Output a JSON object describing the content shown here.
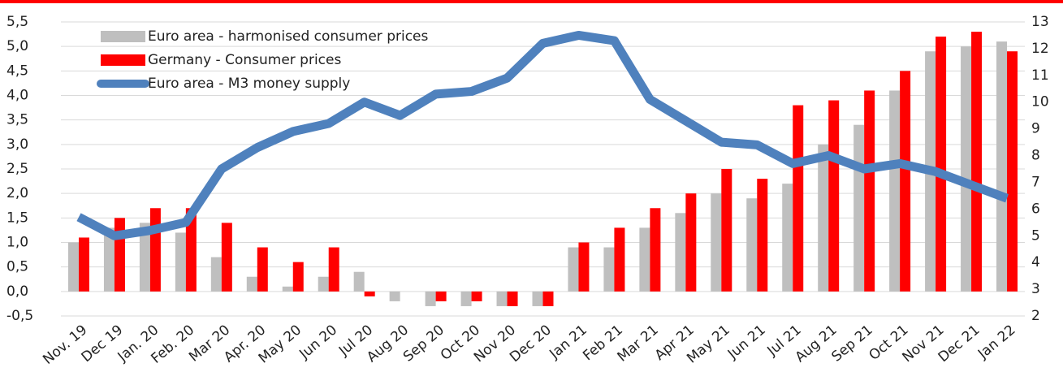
{
  "chart_data": {
    "type": "bar_line",
    "categories": [
      "Nov. 19",
      "Dec 19",
      "Jan. 20",
      "Feb. 20",
      "Mar 20",
      "Apr. 20",
      "May 20",
      "Jun 20",
      "Jul 20",
      "Aug 20",
      "Sep 20",
      "Oct 20",
      "Nov 20",
      "Dec 20",
      "Jan 21",
      "Feb 21",
      "Mar 21",
      "Apr 21",
      "May 21",
      "Jun 21",
      "Jul 21",
      "Aug 21",
      "Sep 21",
      "Oct 21",
      "Nov 21",
      "Dec 21",
      "Jan 22"
    ],
    "series": [
      {
        "name": "Euro area - harmonised consumer prices",
        "color": "#bfbfbf",
        "type": "bar",
        "values": [
          1.0,
          1.3,
          1.4,
          1.2,
          0.7,
          0.3,
          0.1,
          0.3,
          0.4,
          -0.2,
          -0.3,
          -0.3,
          -0.3,
          -0.3,
          0.9,
          0.9,
          1.3,
          1.6,
          2.0,
          1.9,
          2.2,
          3.0,
          3.4,
          4.1,
          4.9,
          5.0,
          5.1
        ]
      },
      {
        "name": "Germany - Consumer prices",
        "color": "#ff0000",
        "type": "bar",
        "values": [
          1.1,
          1.5,
          1.7,
          1.7,
          1.4,
          0.9,
          0.6,
          0.9,
          -0.1,
          0.0,
          -0.2,
          -0.2,
          -0.3,
          -0.3,
          1.0,
          1.3,
          1.7,
          2.0,
          2.5,
          2.3,
          3.8,
          3.9,
          4.1,
          4.5,
          5.2,
          5.3,
          4.9
        ]
      },
      {
        "name": "Euro area - M3 money supply",
        "color": "#4f81bd",
        "type": "line",
        "axis": "y2",
        "values": [
          5.7,
          5.0,
          5.2,
          5.5,
          7.5,
          8.3,
          8.9,
          9.2,
          10.0,
          9.5,
          10.3,
          10.4,
          10.9,
          12.2,
          12.5,
          12.3,
          10.1,
          9.3,
          8.5,
          8.4,
          7.7,
          8.0,
          7.5,
          7.7,
          7.4,
          6.9,
          6.4
        ]
      }
    ],
    "ylim": [
      -0.5,
      5.5
    ],
    "yticks": [
      {
        "value": -0.5,
        "label": "-0,5"
      },
      {
        "value": 0,
        "label": "0,0"
      },
      {
        "value": 0.5,
        "label": "0,5"
      },
      {
        "value": 1,
        "label": "1,0"
      },
      {
        "value": 1.5,
        "label": "1,5"
      },
      {
        "value": 2,
        "label": "2,0"
      },
      {
        "value": 2.5,
        "label": "2,5"
      },
      {
        "value": 3,
        "label": "3,0"
      },
      {
        "value": 3.5,
        "label": "3,5"
      },
      {
        "value": 4,
        "label": "4,0"
      },
      {
        "value": 4.5,
        "label": "4,5"
      },
      {
        "value": 5,
        "label": "5,0"
      },
      {
        "value": 5.5,
        "label": "5,5"
      }
    ],
    "y2lim": [
      2,
      13
    ],
    "y2ticks": [
      2,
      3,
      4,
      5,
      6,
      7,
      8,
      9,
      10,
      11,
      12,
      13
    ],
    "grid": true
  }
}
